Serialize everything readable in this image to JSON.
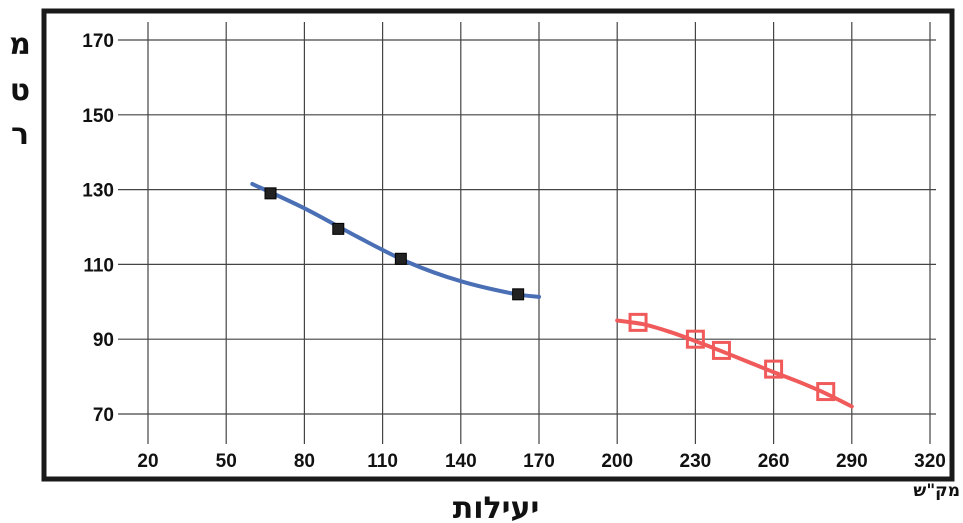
{
  "chart_data": {
    "type": "scatter",
    "title": "",
    "xlabel": "יעילות",
    "x_unit": "מק\"ש",
    "ylabel": "מטר",
    "ylabel_chars": [
      "מ",
      "ט",
      "ר"
    ],
    "xlim": [
      20,
      320
    ],
    "ylim": [
      70,
      170
    ],
    "x_ticks": [
      "20",
      "50",
      "80",
      "110",
      "140",
      "170",
      "200",
      "230",
      "260",
      "290",
      "320"
    ],
    "y_ticks": [
      "70",
      "90",
      "110",
      "130",
      "150",
      "170"
    ],
    "grid": true,
    "legend": "none",
    "series": [
      {
        "color": "#4a6fb5",
        "marker": "filled-square",
        "marker_color": "#222222",
        "points": [
          [
            67,
            129
          ],
          [
            93,
            119.5
          ],
          [
            117,
            111.5
          ],
          [
            162,
            102
          ]
        ],
        "curve": [
          [
            60,
            131.5
          ],
          [
            80,
            125
          ],
          [
            100,
            117.5
          ],
          [
            120,
            110.5
          ],
          [
            140,
            105.5
          ],
          [
            160,
            102.2
          ],
          [
            170,
            101.3
          ]
        ]
      },
      {
        "color": "#f05a5a",
        "marker": "open-square",
        "marker_color": "#f05a5a",
        "points": [
          [
            208,
            94.5
          ],
          [
            230,
            90
          ],
          [
            240,
            87
          ],
          [
            260,
            82
          ],
          [
            280,
            76
          ]
        ],
        "curve": [
          [
            200,
            95
          ],
          [
            210,
            94
          ],
          [
            220,
            92
          ],
          [
            230,
            89.5
          ],
          [
            240,
            86.8
          ],
          [
            250,
            84
          ],
          [
            260,
            81.2
          ],
          [
            270,
            78.5
          ],
          [
            280,
            75.5
          ],
          [
            290,
            72
          ]
        ]
      }
    ]
  }
}
